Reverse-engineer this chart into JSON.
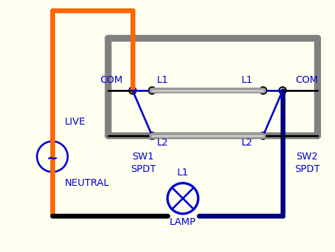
{
  "bg_color": "#fffff0",
  "orange_color": "#FF6600",
  "blue_color": "#0000CC",
  "dark_blue_color": "#000080",
  "black_color": "#000000",
  "gray_color": "#808080",
  "gray_wire_color": "#999999",
  "white_color": "#FFFFFF",
  "fig_width": 4.81,
  "fig_height": 3.62,
  "dpi": 100,
  "labels": {
    "COM_left": "COM",
    "COM_right": "COM",
    "L1_left": "L1",
    "L1_right": "L1",
    "L2_left": "L2",
    "L2_right": "L2",
    "LIVE": "LIVE",
    "NEUTRAL": "NEUTRAL",
    "SW1": "SW1\nSPDT",
    "SW2": "SW2\nSPDT",
    "LAMP_label": "L1",
    "LAMP": "LAMP"
  }
}
